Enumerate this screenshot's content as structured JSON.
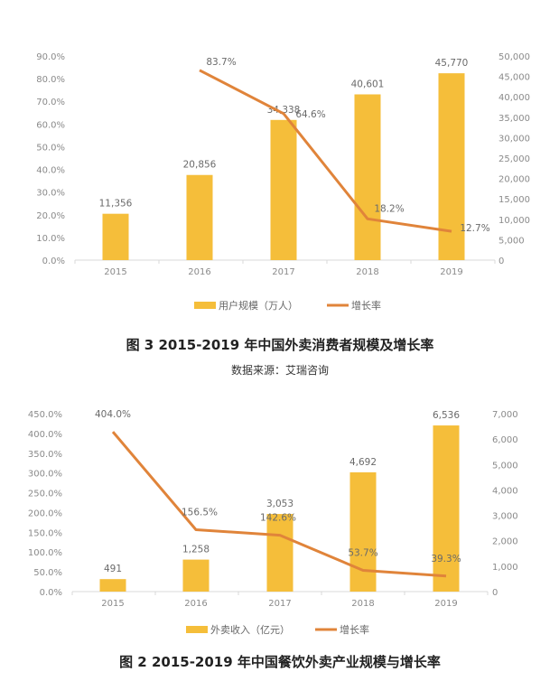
{
  "colors": {
    "bar": "#F5BE3A",
    "line": "#E0843A",
    "axis": "#d9d9d9"
  },
  "chart_data": [
    {
      "type": "bar+line",
      "categories": [
        "2015",
        "2016",
        "2017",
        "2018",
        "2019"
      ],
      "series": [
        {
          "name": "用户规模（万人）",
          "type": "bar",
          "axis": "right",
          "values": [
            11356,
            20856,
            34338,
            40601,
            45770
          ],
          "labels": [
            "11,356",
            "20,856",
            "34,338",
            "40,601",
            "45,770"
          ]
        },
        {
          "name": "增长率",
          "type": "line",
          "axis": "left",
          "values": [
            null,
            83.7,
            64.6,
            18.2,
            12.7
          ],
          "labels": [
            "",
            "83.7%",
            "64.6%",
            "18.2%",
            "12.7%"
          ]
        }
      ],
      "left_axis": {
        "ylim": [
          0,
          90
        ],
        "ticks": [
          "0.0%",
          "10.0%",
          "20.0%",
          "30.0%",
          "40.0%",
          "50.0%",
          "60.0%",
          "70.0%",
          "80.0%",
          "90.0%"
        ]
      },
      "right_axis": {
        "ylim": [
          0,
          50000
        ],
        "ticks": [
          "0",
          "5,000",
          "10,000",
          "15,000",
          "20,000",
          "25,000",
          "30,000",
          "35,000",
          "40,000",
          "45,000",
          "50,000"
        ]
      },
      "legend": "bottom",
      "grid": false,
      "title": "图 3   2015-2019 年中国外卖消费者规模及增长率",
      "subtitle": "数据来源：艾瑞咨询"
    },
    {
      "type": "bar+line",
      "categories": [
        "2015",
        "2016",
        "2017",
        "2018",
        "2019"
      ],
      "series": [
        {
          "name": "外卖收入（亿元）",
          "type": "bar",
          "axis": "right",
          "values": [
            491,
            1258,
            3053,
            4692,
            6536
          ],
          "labels": [
            "491",
            "1,258",
            "3,053",
            "4,692",
            "6,536"
          ]
        },
        {
          "name": "增长率",
          "type": "line",
          "axis": "left",
          "values": [
            404.0,
            156.5,
            142.6,
            53.7,
            39.3
          ],
          "labels": [
            "404.0%",
            "156.5%",
            "142.6%",
            "53.7%",
            "39.3%"
          ]
        }
      ],
      "left_axis": {
        "ylim": [
          0,
          450
        ],
        "ticks": [
          "0.0%",
          "50.0%",
          "100.0%",
          "150.0%",
          "200.0%",
          "250.0%",
          "300.0%",
          "350.0%",
          "400.0%",
          "450.0%"
        ]
      },
      "right_axis": {
        "ylim": [
          0,
          7000
        ],
        "ticks": [
          "0",
          "1,000",
          "2,000",
          "3,000",
          "4,000",
          "5,000",
          "6,000",
          "7,000"
        ]
      },
      "legend": "bottom",
      "grid": false,
      "title": "图 2   2015-2019 年中国餐饮外卖产业规模与增长率"
    }
  ]
}
